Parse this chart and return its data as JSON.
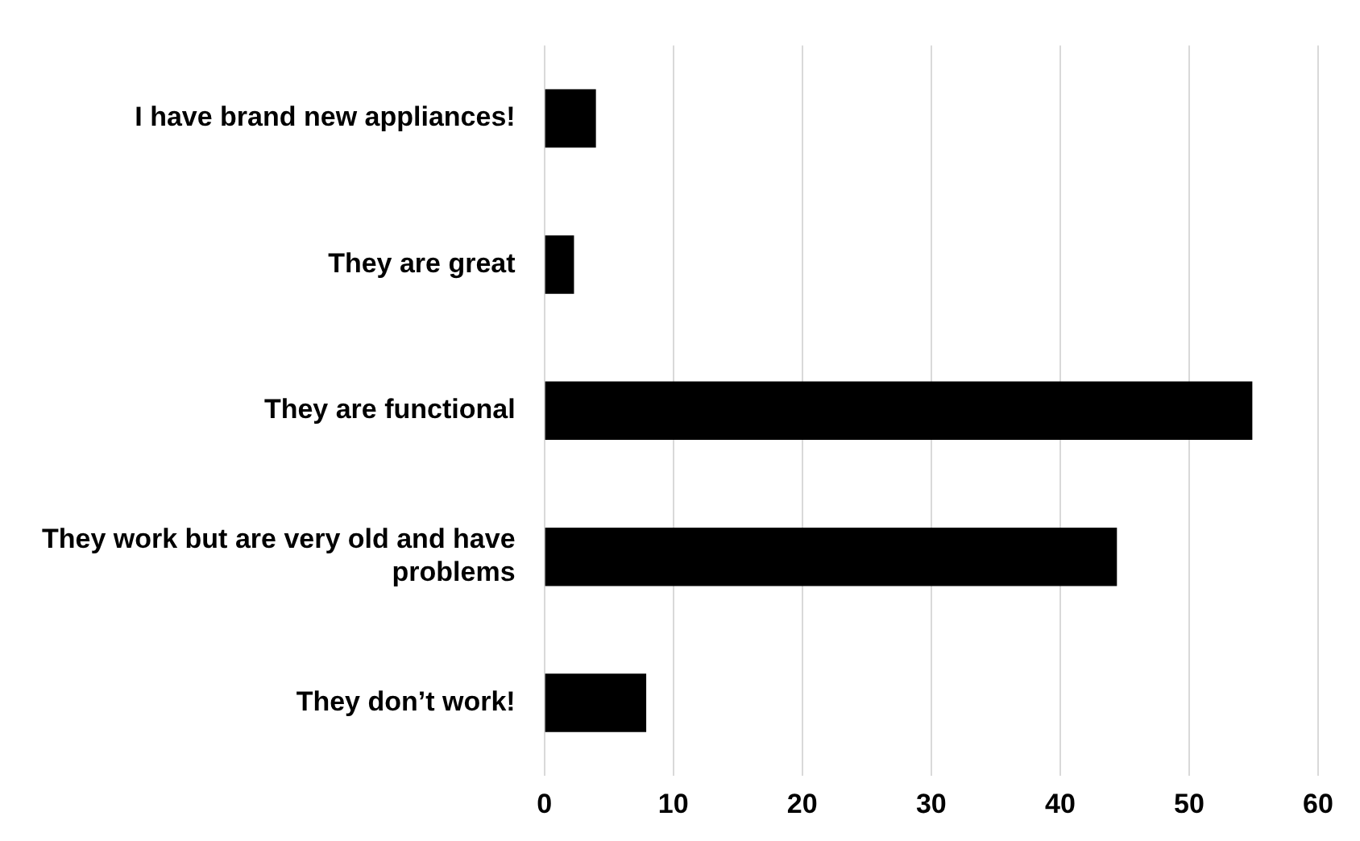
{
  "chart_data": {
    "type": "bar",
    "orientation": "horizontal",
    "categories": [
      "I have brand new appliances!",
      "They are great",
      "They are functional",
      "They work but are very old and have problems",
      "They don’t work!"
    ],
    "values": [
      4,
      2.3,
      54.9,
      44.4,
      7.9
    ],
    "color": "#000000",
    "xlim": [
      0,
      60
    ],
    "xticks": [
      0,
      10,
      20,
      30,
      40,
      50,
      60
    ],
    "grid": "x",
    "legend": false
  }
}
